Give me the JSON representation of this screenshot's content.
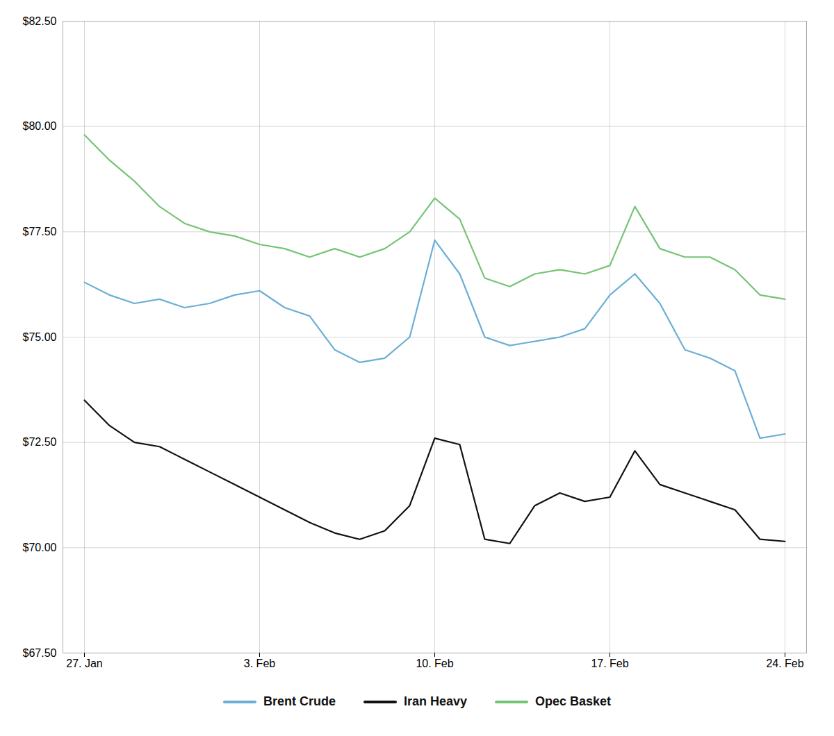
{
  "chart_data": {
    "type": "line",
    "categories": [
      "27. Jan",
      null,
      null,
      null,
      null,
      null,
      null,
      "3. Feb",
      null,
      null,
      null,
      null,
      null,
      null,
      "10. Feb",
      null,
      null,
      null,
      null,
      null,
      null,
      "17. Feb",
      null,
      null,
      null,
      null,
      null,
      null,
      "24. Feb"
    ],
    "series": [
      {
        "name": "Brent Crude",
        "color": "#6baed6",
        "values": [
          76.3,
          76.0,
          75.8,
          75.9,
          75.7,
          75.8,
          76.0,
          76.1,
          75.7,
          75.5,
          74.7,
          74.4,
          74.5,
          75.0,
          77.3,
          76.5,
          75.0,
          74.8,
          74.9,
          75.0,
          75.2,
          76.0,
          76.5,
          75.8,
          74.7,
          74.5,
          74.2,
          72.6,
          72.7
        ]
      },
      {
        "name": "Iran Heavy",
        "color": "#111111",
        "values": [
          73.5,
          72.9,
          72.5,
          72.4,
          72.1,
          71.8,
          71.5,
          71.2,
          70.9,
          70.6,
          70.35,
          70.2,
          70.4,
          71.0,
          72.6,
          72.45,
          70.2,
          70.1,
          71.0,
          71.3,
          71.1,
          71.2,
          72.3,
          71.5,
          71.3,
          71.1,
          70.9,
          70.2,
          70.15
        ]
      },
      {
        "name": "Opec Basket",
        "color": "#74c476",
        "values": [
          79.8,
          79.2,
          78.7,
          78.1,
          77.7,
          77.5,
          77.4,
          77.2,
          77.1,
          76.9,
          77.1,
          76.9,
          77.1,
          77.5,
          78.3,
          77.8,
          76.4,
          76.2,
          76.5,
          76.6,
          76.5,
          76.7,
          78.1,
          77.1,
          76.9,
          76.9,
          76.6,
          76.0,
          75.9
        ]
      }
    ],
    "ylim": [
      67.5,
      82.5
    ],
    "yticks": [
      {
        "value": 67.5,
        "label": "$67.50"
      },
      {
        "value": 70.0,
        "label": "$70.00"
      },
      {
        "value": 72.5,
        "label": "$72.50"
      },
      {
        "value": 75.0,
        "label": "$75.00"
      },
      {
        "value": 77.5,
        "label": "$77.50"
      },
      {
        "value": 80.0,
        "label": "$80.00"
      },
      {
        "value": 82.5,
        "label": "$82.50"
      }
    ],
    "grid": true,
    "legend": "bottom"
  }
}
